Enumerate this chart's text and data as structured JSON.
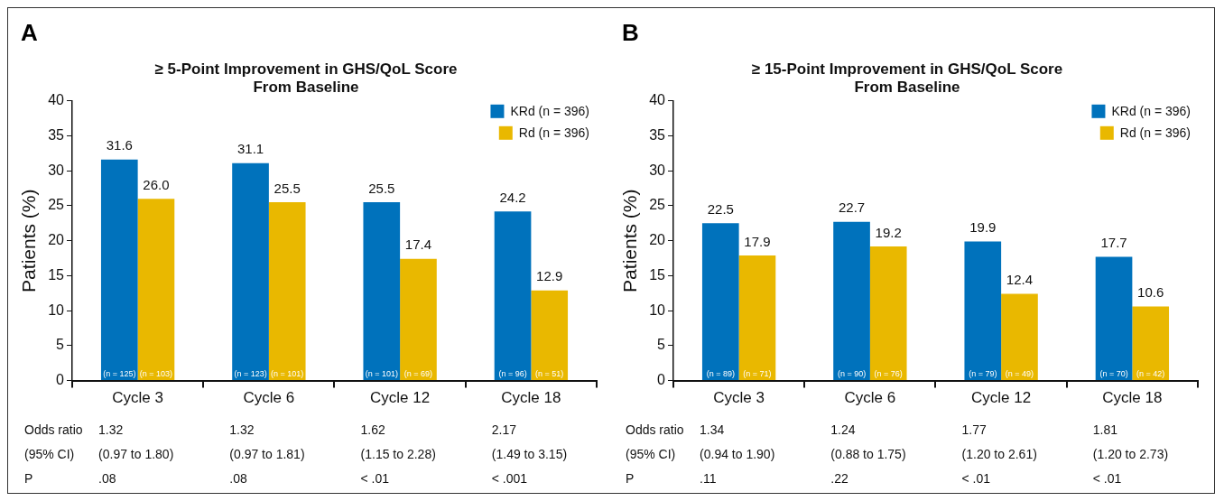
{
  "chart_data": [
    {
      "type": "bar",
      "title": "≥ 5-Point Improvement in GHS/QoL Score\nFrom Baseline",
      "ylabel": "Patients (%)",
      "categories": [
        "Cycle 3",
        "Cycle 6",
        "Cycle 12",
        "Cycle 18"
      ],
      "series": [
        {
          "name": "KRd (n = 396)",
          "color": "#0072bc",
          "values": [
            31.6,
            31.1,
            25.5,
            24.2
          ],
          "value_labels": [
            "31.6",
            "31.1",
            "25.5",
            "24.2"
          ]
        },
        {
          "name": "Rd (n = 396)",
          "color": "#e9b800",
          "values": [
            26.0,
            25.5,
            17.4,
            12.9
          ],
          "value_labels": [
            "26.0",
            "25.5",
            "17.4",
            "12.9"
          ]
        }
      ],
      "ylim": [
        0,
        40
      ],
      "yticks": [
        0,
        5,
        10,
        15,
        20,
        25,
        30,
        35,
        40
      ],
      "grid": false,
      "legend": "top right",
      "annotations": [
        "A",
        {
          "text": "(n = 125)",
          "x": "Cycle 3",
          "y": 0
        },
        {
          "text": "(n = 103)",
          "x": "Cycle 3",
          "y": 0
        },
        {
          "text": "(n = 123)",
          "x": "Cycle 6",
          "y": 0
        },
        {
          "text": "(n = 101)",
          "x": "Cycle 6",
          "y": 0
        },
        {
          "text": "(n = 101)",
          "x": "Cycle 12",
          "y": 0
        },
        {
          "text": "(n = 69)",
          "x": "Cycle 12",
          "y": 0
        },
        {
          "text": "(n = 96)",
          "x": "Cycle 18",
          "y": 0
        },
        {
          "text": "(n = 51)",
          "x": "Cycle 18",
          "y": 0
        },
        "Odds ratio",
        "1.32",
        "1.32",
        "1.62",
        "2.17",
        "(95% CI)",
        "(0.97 to 1.80)",
        "(0.97 to 1.81)",
        "(1.15 to 2.28)",
        "(1.49 to 3.15)",
        "P",
        ".08",
        ".08",
        "< .01",
        "< .001"
      ]
    },
    {
      "type": "bar",
      "title": "≥ 15-Point Improvement in GHS/QoL Score\nFrom Baseline",
      "ylabel": "Patients (%)",
      "categories": [
        "Cycle 3",
        "Cycle 6",
        "Cycle 12",
        "Cycle 18"
      ],
      "series": [
        {
          "name": "KRd (n = 396)",
          "color": "#0072bc",
          "values": [
            22.5,
            22.7,
            19.9,
            17.7
          ],
          "value_labels": [
            "22.5",
            "22.7",
            "19.9",
            "17.7"
          ]
        },
        {
          "name": "Rd (n = 396)",
          "color": "#e9b800",
          "values": [
            17.9,
            19.2,
            12.4,
            10.6
          ],
          "value_labels": [
            "17.9",
            "19.2",
            "12.4",
            "10.6"
          ]
        }
      ],
      "ylim": [
        0,
        40
      ],
      "yticks": [
        0,
        5,
        10,
        15,
        20,
        25,
        30,
        35,
        40
      ],
      "grid": false,
      "legend": "top right",
      "annotations": [
        "B",
        {
          "text": "(n = 89)",
          "x": "Cycle 3",
          "y": 0
        },
        {
          "text": "(n = 71)",
          "x": "Cycle 3",
          "y": 0
        },
        {
          "text": "(n = 90)",
          "x": "Cycle 6",
          "y": 0
        },
        {
          "text": "(n = 76)",
          "x": "Cycle 6",
          "y": 0
        },
        {
          "text": "(n = 79)",
          "x": "Cycle 12",
          "y": 0
        },
        {
          "text": "(n = 49)",
          "x": "Cycle 12",
          "y": 0
        },
        {
          "text": "(n = 70)",
          "x": "Cycle 18",
          "y": 0
        },
        {
          "text": "(n = 42)",
          "x": "Cycle 18",
          "y": 0
        },
        "Odds ratio",
        "1.34",
        "1.24",
        "1.77",
        "1.81",
        "(95% CI)",
        "(0.94 to 1.90)",
        "(0.88 to 1.75)",
        "(1.20 to 2.61)",
        "(1.20 to 2.73)",
        "P",
        ".11",
        ".22",
        "< .01",
        "< .01"
      ]
    }
  ]
}
